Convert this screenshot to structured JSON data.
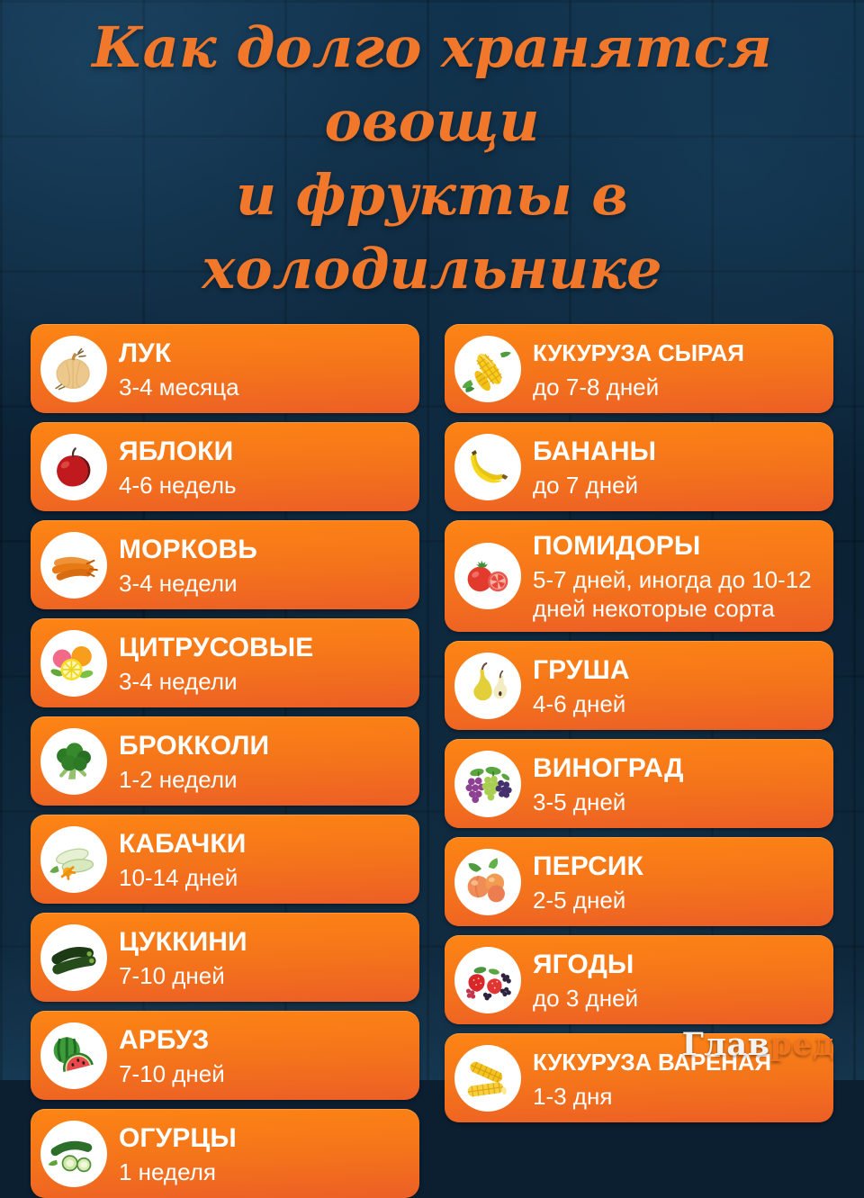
{
  "title": {
    "line1": "Как долго хранятся овощи",
    "line2": "и фрукты в холодильнике"
  },
  "colors": {
    "accent_orange": "#f1782b",
    "card_gradient_top": "#fd8514",
    "card_gradient_bottom": "#ec5f26",
    "background_navy": "#0c2336",
    "text_white": "#ffffff",
    "brand_orange": "#f0741e"
  },
  "columns": {
    "left": [
      {
        "name": "ЛУК",
        "duration": "3-4 месяца",
        "icon": "onion-icon"
      },
      {
        "name": "ЯБЛОКИ",
        "duration": "4-6 недель",
        "icon": "apple-icon"
      },
      {
        "name": "МОРКОВЬ",
        "duration": "3-4 недели",
        "icon": "carrot-icon"
      },
      {
        "name": "ЦИТРУСОВЫЕ",
        "duration": "3-4 недели",
        "icon": "citrus-icon"
      },
      {
        "name": "БРОККОЛИ",
        "duration": "1-2 недели",
        "icon": "broccoli-icon"
      },
      {
        "name": "КАБАЧКИ",
        "duration": "10-14 дней",
        "icon": "squash-icon"
      },
      {
        "name": "ЦУККИНИ",
        "duration": "7-10 дней",
        "icon": "zucchini-icon"
      },
      {
        "name": "АРБУЗ",
        "duration": "7-10 дней",
        "icon": "watermelon-icon"
      },
      {
        "name": "ОГУРЦЫ",
        "duration": "1 неделя",
        "icon": "cucumber-icon"
      }
    ],
    "right": [
      {
        "name": "КУКУРУЗА СЫРАЯ",
        "duration": "до 7-8 дней",
        "icon": "corn-raw-icon"
      },
      {
        "name": "БАНАНЫ",
        "duration": "до 7 дней",
        "icon": "banana-icon"
      },
      {
        "name": "ПОМИДОРЫ",
        "duration": "5-7 дней, иногда до 10-12 дней некоторые сорта",
        "icon": "tomato-icon"
      },
      {
        "name": "ГРУША",
        "duration": "4-6 дней",
        "icon": "pear-icon"
      },
      {
        "name": "ВИНОГРАД",
        "duration": "3-5 дней",
        "icon": "grapes-icon"
      },
      {
        "name": "ПЕРСИК",
        "duration": "2-5 дней",
        "icon": "peach-icon"
      },
      {
        "name": "ЯГОДЫ",
        "duration": "до 3 дней",
        "icon": "berries-icon"
      },
      {
        "name": "КУКУРУЗА ВАРЕНАЯ",
        "duration": "1-3 дня",
        "icon": "corn-boiled-icon"
      }
    ]
  },
  "footer": {
    "brand_white": "Глав",
    "brand_orange": "ред"
  }
}
